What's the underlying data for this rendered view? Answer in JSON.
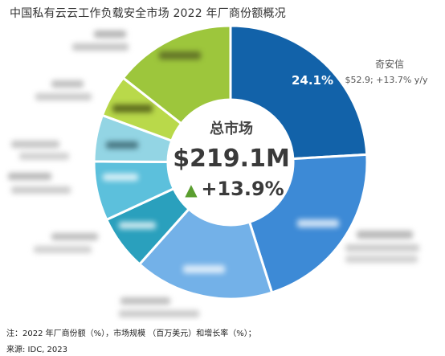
{
  "title": "中国私有云云工作负载安全市场 2022 年厂商份额概况",
  "center": {
    "label": "总市场",
    "total": "$219.1M",
    "growth_arrow": "▲",
    "growth": "+13.9%"
  },
  "colors": {
    "arrow": "#5a9e2f",
    "slices": [
      "#1262a9",
      "#3d8ad6",
      "#73b1e8",
      "#2aa0bd",
      "#5cc0dc",
      "#93d5e4",
      "#b9d94a",
      "#9dc63c"
    ]
  },
  "chart_data": {
    "type": "pie",
    "donut": true,
    "title": "中国私有云云工作负载安全市场 2022 年厂商份额概况",
    "slices": [
      {
        "name": "奇安信",
        "value": 24.1,
        "label": "24.1%",
        "detail": "$52.9; +13.7% y/y"
      },
      {
        "name": "",
        "value": 21.0
      },
      {
        "name": "",
        "value": 16.5
      },
      {
        "name": "",
        "value": 6.5
      },
      {
        "name": "",
        "value": 7.0
      },
      {
        "name": "",
        "value": 5.5
      },
      {
        "name": "",
        "value": 5.0
      },
      {
        "name": "",
        "value": 14.4
      }
    ]
  },
  "footnotes": {
    "note": "注：2022 年厂商份额（%），市场规模 （百万美元）和增长率（%）；",
    "source": "来源: IDC, 2023"
  }
}
